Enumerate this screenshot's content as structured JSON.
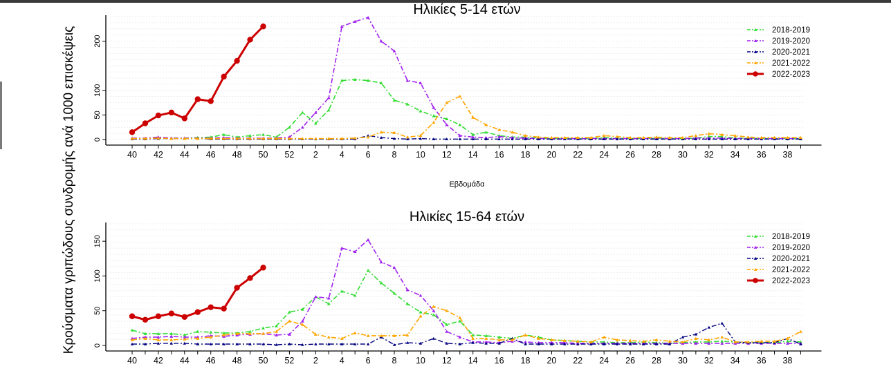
{
  "ylabel": "Κρούσματα γριπώδους συνδρομής ανά 1000 επισκέψεις",
  "colors": {
    "2018-2019": "#33dd33",
    "2019-2020": "#a020f0",
    "2020-2021": "#000080",
    "2021-2022": "#ffa500",
    "2022-2023": "#cc0000"
  },
  "chart_data": [
    {
      "type": "line",
      "title": "Ηλικίες 5-14 ετών",
      "xlabel": "Εβδομάδα",
      "ylabel": "",
      "week_labels": [
        "40",
        "41",
        "42",
        "43",
        "44",
        "45",
        "46",
        "47",
        "48",
        "49",
        "50",
        "51",
        "52",
        "1",
        "2",
        "3",
        "4",
        "5",
        "6",
        "7",
        "8",
        "9",
        "10",
        "11",
        "12",
        "13",
        "14",
        "15",
        "16",
        "17",
        "18",
        "19",
        "20",
        "21",
        "22",
        "23",
        "24",
        "25",
        "26",
        "27",
        "28",
        "29",
        "30",
        "31",
        "32",
        "33",
        "34",
        "35",
        "36",
        "37",
        "38",
        "39"
      ],
      "x_tick_labels": [
        "40",
        "42",
        "44",
        "46",
        "48",
        "50",
        "52",
        "2",
        "4",
        "6",
        "8",
        "10",
        "12",
        "14",
        "16",
        "18",
        "20",
        "22",
        "24",
        "26",
        "28",
        "30",
        "32",
        "34",
        "36",
        "38"
      ],
      "y_ticks": [
        0,
        50,
        100,
        200
      ],
      "ylim": [
        0,
        250
      ],
      "grid": true,
      "legend_position": "top-right",
      "series": [
        {
          "name": "2018-2019",
          "values": [
            3,
            2,
            4,
            3,
            3,
            4,
            5,
            10,
            5,
            8,
            10,
            5,
            25,
            55,
            33,
            60,
            120,
            122,
            120,
            115,
            80,
            72,
            58,
            48,
            42,
            30,
            10,
            15,
            8,
            5,
            5,
            3,
            2,
            2,
            2,
            2,
            4,
            3,
            2,
            2,
            3,
            2,
            2,
            3,
            6,
            6,
            3,
            3,
            2,
            2,
            2,
            2
          ]
        },
        {
          "name": "2019-2020",
          "values": [
            3,
            3,
            5,
            3,
            3,
            3,
            3,
            4,
            3,
            3,
            3,
            3,
            5,
            25,
            55,
            85,
            230,
            240,
            248,
            200,
            180,
            120,
            115,
            65,
            30,
            8,
            5,
            4,
            6,
            4,
            3,
            2,
            2,
            2,
            2,
            2,
            2,
            2,
            2,
            2,
            2,
            2,
            2,
            3,
            3,
            3,
            2,
            2,
            2,
            2,
            2,
            2
          ]
        },
        {
          "name": "2020-2021",
          "values": [
            1,
            1,
            2,
            2,
            2,
            2,
            1,
            1,
            1,
            1,
            1,
            1,
            1,
            1,
            1,
            1,
            1,
            1,
            8,
            4,
            2,
            1,
            2,
            1,
            1,
            1,
            1,
            1,
            1,
            1,
            1,
            1,
            1,
            1,
            1,
            1,
            1,
            1,
            1,
            1,
            1,
            1,
            1,
            1,
            1,
            1,
            1,
            1,
            1,
            1,
            1,
            1
          ]
        },
        {
          "name": "2021-2022",
          "values": [
            2,
            2,
            3,
            2,
            2,
            2,
            2,
            2,
            2,
            2,
            2,
            2,
            2,
            2,
            2,
            2,
            2,
            3,
            5,
            15,
            14,
            5,
            8,
            35,
            75,
            88,
            45,
            30,
            20,
            15,
            8,
            5,
            4,
            4,
            4,
            4,
            8,
            6,
            4,
            4,
            5,
            4,
            4,
            8,
            12,
            10,
            8,
            5,
            4,
            4,
            4,
            4
          ]
        },
        {
          "name": "2022-2023",
          "values": [
            15,
            33,
            49,
            55,
            43,
            82,
            78,
            128,
            160,
            203,
            230
          ]
        }
      ]
    },
    {
      "type": "line",
      "title": "Ηλικίες 15-64 ετών",
      "xlabel": "",
      "ylabel": "",
      "week_labels": [
        "40",
        "41",
        "42",
        "43",
        "44",
        "45",
        "46",
        "47",
        "48",
        "49",
        "50",
        "51",
        "52",
        "1",
        "2",
        "3",
        "4",
        "5",
        "6",
        "7",
        "8",
        "9",
        "10",
        "11",
        "12",
        "13",
        "14",
        "15",
        "16",
        "17",
        "18",
        "19",
        "20",
        "21",
        "22",
        "23",
        "24",
        "25",
        "26",
        "27",
        "28",
        "29",
        "30",
        "31",
        "32",
        "33",
        "34",
        "35",
        "36",
        "37",
        "38",
        "39"
      ],
      "x_tick_labels": [
        "40",
        "42",
        "44",
        "46",
        "48",
        "50",
        "52",
        "2",
        "4",
        "6",
        "8",
        "10",
        "12",
        "14",
        "16",
        "18",
        "20",
        "22",
        "24",
        "26",
        "28",
        "30",
        "32",
        "34",
        "36",
        "38"
      ],
      "y_ticks": [
        0,
        50,
        100,
        150
      ],
      "ylim": [
        0,
        175
      ],
      "grid": true,
      "legend_position": "top-right",
      "series": [
        {
          "name": "2018-2019",
          "values": [
            22,
            17,
            17,
            17,
            15,
            20,
            19,
            18,
            18,
            20,
            25,
            28,
            48,
            52,
            70,
            60,
            78,
            72,
            108,
            90,
            75,
            60,
            48,
            44,
            30,
            35,
            15,
            14,
            12,
            10,
            15,
            12,
            8,
            7,
            6,
            5,
            5,
            4,
            4,
            5,
            4,
            3,
            4,
            5,
            5,
            6,
            5,
            4,
            4,
            4,
            6,
            5
          ]
        },
        {
          "name": "2019-2020",
          "values": [
            10,
            12,
            12,
            13,
            12,
            12,
            14,
            13,
            15,
            16,
            17,
            15,
            16,
            35,
            70,
            68,
            140,
            135,
            152,
            120,
            112,
            80,
            72,
            50,
            20,
            12,
            5,
            5,
            4,
            6,
            5,
            4,
            4,
            4,
            3,
            3,
            3,
            3,
            3,
            3,
            3,
            3,
            3,
            3,
            3,
            3,
            3,
            3,
            3,
            3,
            3,
            3
          ]
        },
        {
          "name": "2020-2021",
          "values": [
            2,
            2,
            3,
            3,
            3,
            2,
            2,
            2,
            2,
            2,
            2,
            1,
            2,
            1,
            2,
            2,
            2,
            2,
            2,
            12,
            1,
            4,
            3,
            10,
            3,
            2,
            4,
            3,
            3,
            10,
            2,
            2,
            2,
            2,
            2,
            2,
            2,
            2,
            2,
            2,
            2,
            2,
            12,
            16,
            26,
            32,
            5,
            4,
            4,
            4,
            10,
            2
          ]
        },
        {
          "name": "2021-2022",
          "values": [
            8,
            10,
            8,
            8,
            9,
            10,
            12,
            15,
            17,
            17,
            17,
            20,
            35,
            30,
            16,
            12,
            10,
            18,
            14,
            14,
            14,
            15,
            42,
            56,
            50,
            40,
            10,
            10,
            8,
            8,
            15,
            10,
            8,
            7,
            6,
            5,
            12,
            8,
            7,
            6,
            8,
            6,
            5,
            10,
            8,
            12,
            5,
            5,
            6,
            6,
            10,
            20
          ]
        },
        {
          "name": "2022-2023",
          "values": [
            42,
            37,
            42,
            46,
            41,
            48,
            55,
            53,
            83,
            97,
            112
          ]
        }
      ]
    }
  ]
}
